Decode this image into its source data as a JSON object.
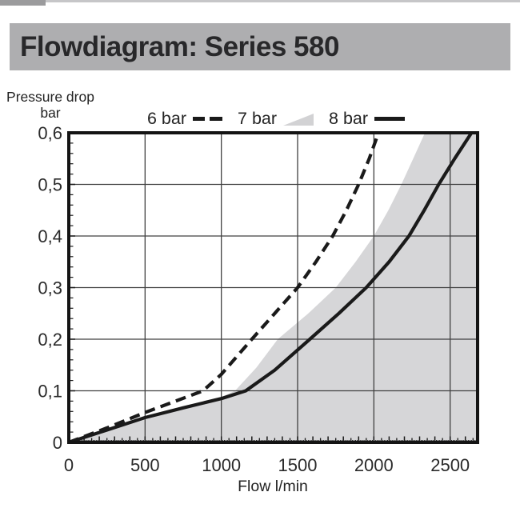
{
  "page": {
    "title": "Flowdiagram: Series 580"
  },
  "y_axis_label": {
    "line1": "Pressure drop",
    "line2": "bar"
  },
  "x_axis_label": "Flow l/min",
  "legend": {
    "items": [
      {
        "label": "6 bar",
        "style": "dashed"
      },
      {
        "label": "7 bar",
        "style": "area"
      },
      {
        "label": "8 bar",
        "style": "solid"
      }
    ]
  },
  "colors": {
    "title_bar_bg": "#aeaeb0",
    "line": "#1a1a1a",
    "area_fill": "#d6d6d8",
    "grid": "#414141",
    "border": "#141414",
    "text": "#2a2a2a"
  },
  "chart_data": {
    "type": "line",
    "title": "Flowdiagram: Series 580",
    "xlabel": "Flow l/min",
    "ylabel": "Pressure drop bar",
    "xlim": [
      0,
      2680
    ],
    "ylim": [
      0,
      0.6
    ],
    "grid": true,
    "legend_position": "top",
    "x_tick_values": [
      0,
      500,
      1000,
      1500,
      2000,
      2500
    ],
    "x_tick_labels": [
      "0",
      "500",
      "1000",
      "1500",
      "2000",
      "2500"
    ],
    "y_tick_values": [
      0,
      0.1,
      0.2,
      0.3,
      0.4,
      0.5,
      0.6
    ],
    "y_tick_labels": [
      "0",
      "0,1",
      "0,2",
      "0,3",
      "0,4",
      "0,5",
      "0,6"
    ],
    "x_minor_tick_steps": {
      "micro": 10,
      "mid": 50,
      "major": 100
    },
    "y_minor_tick_steps": {
      "minor": 0.02,
      "major": 0.1
    },
    "series": [
      {
        "name": "7 bar",
        "style": "area",
        "color": "#d6d6d8",
        "points": [
          [
            0,
            0
          ],
          [
            250,
            0.021
          ],
          [
            500,
            0.044
          ],
          [
            750,
            0.065
          ],
          [
            1000,
            0.088
          ],
          [
            1090,
            0.1
          ],
          [
            1230,
            0.145
          ],
          [
            1370,
            0.2
          ],
          [
            1570,
            0.25
          ],
          [
            1750,
            0.3
          ],
          [
            1880,
            0.35
          ],
          [
            2000,
            0.4
          ],
          [
            2095,
            0.45
          ],
          [
            2180,
            0.5
          ],
          [
            2258,
            0.55
          ],
          [
            2335,
            0.6
          ]
        ]
      },
      {
        "name": "6 bar",
        "style": "dashed",
        "color": "#1a1a1a",
        "points": [
          [
            0,
            0
          ],
          [
            250,
            0.028
          ],
          [
            500,
            0.058
          ],
          [
            700,
            0.08
          ],
          [
            880,
            0.1
          ],
          [
            1000,
            0.132
          ],
          [
            1200,
            0.2
          ],
          [
            1350,
            0.25
          ],
          [
            1500,
            0.3
          ],
          [
            1620,
            0.35
          ],
          [
            1730,
            0.4
          ],
          [
            1820,
            0.45
          ],
          [
            1900,
            0.5
          ],
          [
            1970,
            0.55
          ],
          [
            2030,
            0.6
          ]
        ]
      },
      {
        "name": "8 bar",
        "style": "solid",
        "color": "#1a1a1a",
        "points": [
          [
            0,
            0
          ],
          [
            250,
            0.024
          ],
          [
            500,
            0.048
          ],
          [
            750,
            0.067
          ],
          [
            1000,
            0.085
          ],
          [
            1160,
            0.1
          ],
          [
            1350,
            0.14
          ],
          [
            1580,
            0.2
          ],
          [
            1770,
            0.25
          ],
          [
            1950,
            0.3
          ],
          [
            2100,
            0.35
          ],
          [
            2230,
            0.4
          ],
          [
            2330,
            0.45
          ],
          [
            2425,
            0.5
          ],
          [
            2530,
            0.55
          ],
          [
            2640,
            0.6
          ]
        ]
      }
    ]
  }
}
